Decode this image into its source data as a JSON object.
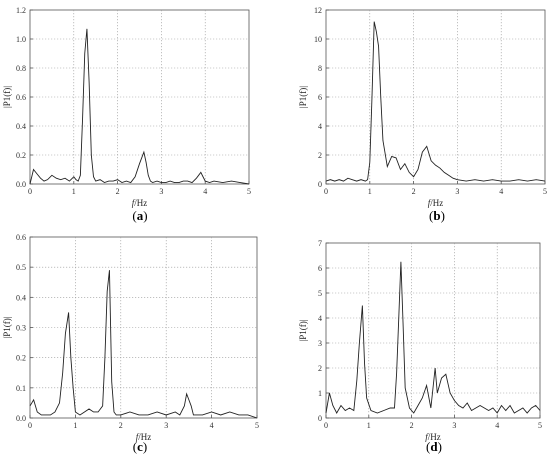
{
  "chart_data": [
    {
      "id": "a",
      "type": "line",
      "panel_label": "(a)",
      "xlabel_italic": "f",
      "xlabel_rest": "/Hz",
      "ylabel": "|P1(f)|",
      "xlim": [
        0,
        5
      ],
      "ylim": [
        0,
        1.2
      ],
      "xticks": [
        0,
        1,
        2,
        3,
        4,
        5
      ],
      "yticks": [
        0.0,
        0.2,
        0.4,
        0.6,
        0.8,
        1.0,
        1.2
      ],
      "ytick_labels": [
        "0.0",
        "0.2",
        "0.4",
        "0.6",
        "0.8",
        "1.0",
        "1.2"
      ],
      "grid": true,
      "x": [
        0,
        0.08,
        0.16,
        0.24,
        0.32,
        0.4,
        0.5,
        0.6,
        0.7,
        0.8,
        0.9,
        1.0,
        1.05,
        1.1,
        1.15,
        1.2,
        1.25,
        1.3,
        1.35,
        1.4,
        1.45,
        1.5,
        1.6,
        1.7,
        1.8,
        1.9,
        2.0,
        2.1,
        2.2,
        2.3,
        2.4,
        2.5,
        2.6,
        2.65,
        2.7,
        2.75,
        2.8,
        2.9,
        3.0,
        3.1,
        3.2,
        3.3,
        3.4,
        3.5,
        3.6,
        3.7,
        3.8,
        3.85,
        3.9,
        3.95,
        4.0,
        4.1,
        4.2,
        4.4,
        4.6,
        4.8,
        5.0
      ],
      "y": [
        0.0,
        0.1,
        0.07,
        0.04,
        0.02,
        0.03,
        0.06,
        0.04,
        0.03,
        0.04,
        0.02,
        0.05,
        0.03,
        0.02,
        0.06,
        0.45,
        0.9,
        1.07,
        0.7,
        0.2,
        0.05,
        0.02,
        0.03,
        0.01,
        0.02,
        0.02,
        0.03,
        0.01,
        0.02,
        0.01,
        0.05,
        0.14,
        0.22,
        0.15,
        0.06,
        0.02,
        0.01,
        0.02,
        0.01,
        0.01,
        0.02,
        0.01,
        0.01,
        0.02,
        0.02,
        0.01,
        0.04,
        0.06,
        0.08,
        0.05,
        0.02,
        0.01,
        0.02,
        0.01,
        0.02,
        0.01,
        0.0
      ]
    },
    {
      "id": "b",
      "type": "line",
      "panel_label": "(b)",
      "xlabel_italic": "f",
      "xlabel_rest": "/Hz",
      "ylabel": "|P1(f)|",
      "xlim": [
        0,
        5
      ],
      "ylim": [
        0,
        12
      ],
      "xticks": [
        0,
        1,
        2,
        3,
        4,
        5
      ],
      "yticks": [
        0,
        2,
        4,
        6,
        8,
        10,
        12
      ],
      "ytick_labels": [
        "0",
        "2",
        "4",
        "6",
        "8",
        "10",
        "12"
      ],
      "grid": true,
      "x": [
        0,
        0.1,
        0.2,
        0.3,
        0.4,
        0.5,
        0.6,
        0.7,
        0.8,
        0.9,
        0.95,
        1.0,
        1.05,
        1.1,
        1.15,
        1.2,
        1.25,
        1.3,
        1.4,
        1.5,
        1.6,
        1.7,
        1.8,
        1.9,
        2.0,
        2.1,
        2.2,
        2.3,
        2.4,
        2.5,
        2.6,
        2.7,
        2.8,
        2.9,
        3.0,
        3.2,
        3.4,
        3.6,
        3.8,
        4.0,
        4.2,
        4.4,
        4.6,
        4.8,
        5.0
      ],
      "y": [
        0.2,
        0.3,
        0.2,
        0.3,
        0.2,
        0.4,
        0.3,
        0.2,
        0.3,
        0.2,
        0.3,
        1.5,
        6.0,
        11.2,
        10.5,
        9.5,
        6.0,
        3.0,
        1.2,
        1.9,
        1.8,
        1.0,
        1.4,
        0.8,
        0.5,
        1.0,
        2.2,
        2.6,
        1.6,
        1.3,
        1.1,
        0.8,
        0.6,
        0.4,
        0.3,
        0.2,
        0.3,
        0.2,
        0.3,
        0.2,
        0.2,
        0.3,
        0.2,
        0.3,
        0.2
      ]
    },
    {
      "id": "c",
      "type": "line",
      "panel_label": "(c)",
      "xlabel_italic": "f",
      "xlabel_rest": "/Hz",
      "ylabel": "|P1(f)|",
      "xlim": [
        0,
        5
      ],
      "ylim": [
        0,
        0.6
      ],
      "xticks": [
        0,
        1,
        2,
        3,
        4,
        5
      ],
      "yticks": [
        0.0,
        0.1,
        0.2,
        0.3,
        0.4,
        0.5,
        0.6
      ],
      "ytick_labels": [
        "0.0",
        "0.1",
        "0.2",
        "0.3",
        "0.4",
        "0.5",
        "0.6"
      ],
      "grid": true,
      "x": [
        0,
        0.08,
        0.16,
        0.25,
        0.35,
        0.45,
        0.55,
        0.65,
        0.72,
        0.78,
        0.85,
        0.9,
        0.95,
        1.0,
        1.1,
        1.2,
        1.3,
        1.4,
        1.5,
        1.6,
        1.65,
        1.7,
        1.75,
        1.8,
        1.85,
        1.9,
        2.0,
        2.2,
        2.4,
        2.6,
        2.8,
        3.0,
        3.2,
        3.3,
        3.4,
        3.45,
        3.5,
        3.55,
        3.6,
        3.8,
        4.0,
        4.2,
        4.4,
        4.6,
        4.8,
        5.0
      ],
      "y": [
        0.04,
        0.06,
        0.02,
        0.01,
        0.01,
        0.01,
        0.02,
        0.05,
        0.15,
        0.28,
        0.35,
        0.2,
        0.1,
        0.02,
        0.01,
        0.02,
        0.03,
        0.02,
        0.02,
        0.04,
        0.2,
        0.42,
        0.49,
        0.12,
        0.02,
        0.01,
        0.01,
        0.02,
        0.01,
        0.01,
        0.02,
        0.01,
        0.02,
        0.01,
        0.04,
        0.08,
        0.06,
        0.04,
        0.01,
        0.01,
        0.02,
        0.01,
        0.02,
        0.01,
        0.01,
        0.0
      ]
    },
    {
      "id": "d",
      "type": "line",
      "panel_label": "(d)",
      "xlabel_italic": "f",
      "xlabel_rest": "/Hz",
      "ylabel": "|P1(f)|",
      "xlim": [
        0,
        5
      ],
      "ylim": [
        0,
        7
      ],
      "xticks": [
        0,
        1,
        2,
        3,
        4,
        5
      ],
      "yticks": [
        0,
        1,
        2,
        3,
        4,
        5,
        6,
        7
      ],
      "ytick_labels": [
        "0",
        "1",
        "2",
        "3",
        "4",
        "5",
        "6",
        "7"
      ],
      "grid": true,
      "x": [
        0,
        0.08,
        0.16,
        0.25,
        0.35,
        0.45,
        0.55,
        0.65,
        0.72,
        0.78,
        0.85,
        0.9,
        0.95,
        1.05,
        1.2,
        1.35,
        1.5,
        1.6,
        1.65,
        1.7,
        1.75,
        1.8,
        1.85,
        1.95,
        2.05,
        2.15,
        2.25,
        2.35,
        2.45,
        2.5,
        2.55,
        2.6,
        2.7,
        2.8,
        2.9,
        3.0,
        3.1,
        3.2,
        3.3,
        3.4,
        3.5,
        3.6,
        3.7,
        3.8,
        3.9,
        4.0,
        4.1,
        4.2,
        4.3,
        4.4,
        4.5,
        4.6,
        4.7,
        4.8,
        4.9,
        5.0
      ],
      "y": [
        0.2,
        1.0,
        0.5,
        0.2,
        0.5,
        0.3,
        0.4,
        0.3,
        1.5,
        3.0,
        4.5,
        2.2,
        0.8,
        0.3,
        0.2,
        0.3,
        0.4,
        0.4,
        1.8,
        4.0,
        6.25,
        3.8,
        1.2,
        0.4,
        0.2,
        0.5,
        0.8,
        1.3,
        0.4,
        1.2,
        2.0,
        1.0,
        1.6,
        1.75,
        1.0,
        0.7,
        0.5,
        0.4,
        0.6,
        0.3,
        0.4,
        0.5,
        0.4,
        0.3,
        0.4,
        0.2,
        0.5,
        0.3,
        0.5,
        0.2,
        0.3,
        0.4,
        0.2,
        0.4,
        0.5,
        0.3
      ]
    }
  ]
}
